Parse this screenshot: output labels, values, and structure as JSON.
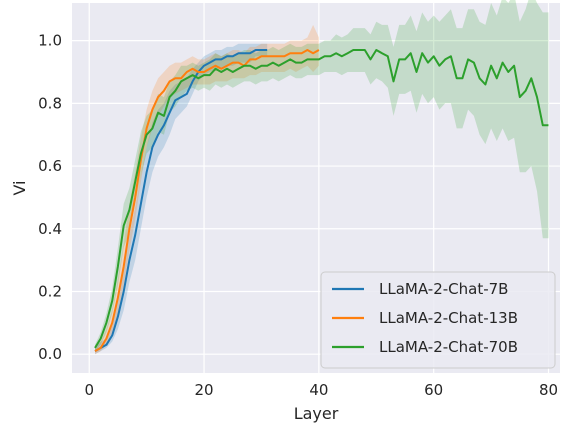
{
  "chart_data": {
    "type": "line",
    "xlabel": "Layer",
    "ylabel": "Vi",
    "xlim": [
      -3,
      82
    ],
    "ylim": [
      -0.06,
      1.12
    ],
    "xticks": [
      0,
      20,
      40,
      60,
      80
    ],
    "yticks": [
      0.0,
      0.2,
      0.4,
      0.6,
      0.8,
      1.0
    ],
    "xtick_labels": [
      "0",
      "20",
      "40",
      "60",
      "80"
    ],
    "ytick_labels": [
      "0.0",
      "0.2",
      "0.4",
      "0.6",
      "0.8",
      "1.0"
    ],
    "grid": true,
    "background": "#eaeaf2",
    "legend_position": "lower-right",
    "series": [
      {
        "name": "LLaMA-2-Chat-7B",
        "color": "#1f77b4",
        "x": [
          1,
          2,
          3,
          4,
          5,
          6,
          7,
          8,
          9,
          10,
          11,
          12,
          13,
          14,
          15,
          16,
          17,
          18,
          19,
          20,
          21,
          22,
          23,
          24,
          25,
          26,
          27,
          28,
          29,
          30,
          31
        ],
        "y": [
          0.01,
          0.02,
          0.03,
          0.06,
          0.12,
          0.2,
          0.3,
          0.38,
          0.48,
          0.58,
          0.66,
          0.7,
          0.73,
          0.77,
          0.81,
          0.82,
          0.83,
          0.87,
          0.9,
          0.92,
          0.93,
          0.94,
          0.94,
          0.95,
          0.95,
          0.96,
          0.96,
          0.96,
          0.97,
          0.97,
          0.97
        ],
        "lower": [
          0.0,
          0.01,
          0.02,
          0.04,
          0.08,
          0.14,
          0.23,
          0.3,
          0.4,
          0.5,
          0.58,
          0.63,
          0.66,
          0.7,
          0.75,
          0.77,
          0.79,
          0.83,
          0.87,
          0.89,
          0.9,
          0.91,
          0.91,
          0.92,
          0.92,
          0.93,
          0.93,
          0.93,
          0.95,
          0.95,
          0.95
        ],
        "upper": [
          0.02,
          0.04,
          0.05,
          0.09,
          0.17,
          0.27,
          0.38,
          0.47,
          0.57,
          0.66,
          0.74,
          0.78,
          0.8,
          0.84,
          0.86,
          0.87,
          0.88,
          0.91,
          0.93,
          0.95,
          0.96,
          0.97,
          0.97,
          0.98,
          0.98,
          0.99,
          0.99,
          0.99,
          0.99,
          0.99,
          0.99
        ]
      },
      {
        "name": "LLaMA-2-Chat-13B",
        "color": "#ff7f0e",
        "x": [
          1,
          2,
          3,
          4,
          5,
          6,
          7,
          8,
          9,
          10,
          11,
          12,
          13,
          14,
          15,
          16,
          17,
          18,
          19,
          20,
          21,
          22,
          23,
          24,
          25,
          26,
          27,
          28,
          29,
          30,
          31,
          32,
          33,
          34,
          35,
          36,
          37,
          38,
          39,
          40
        ],
        "y": [
          0.01,
          0.02,
          0.05,
          0.1,
          0.18,
          0.28,
          0.4,
          0.5,
          0.62,
          0.72,
          0.78,
          0.82,
          0.84,
          0.87,
          0.88,
          0.88,
          0.9,
          0.91,
          0.9,
          0.9,
          0.91,
          0.92,
          0.91,
          0.92,
          0.93,
          0.93,
          0.92,
          0.94,
          0.94,
          0.95,
          0.95,
          0.95,
          0.95,
          0.95,
          0.96,
          0.96,
          0.96,
          0.97,
          0.96,
          0.97
        ],
        "lower": [
          0.0,
          0.01,
          0.03,
          0.07,
          0.13,
          0.22,
          0.33,
          0.43,
          0.55,
          0.66,
          0.72,
          0.76,
          0.79,
          0.82,
          0.83,
          0.84,
          0.85,
          0.86,
          0.86,
          0.86,
          0.86,
          0.87,
          0.87,
          0.87,
          0.88,
          0.88,
          0.88,
          0.89,
          0.89,
          0.9,
          0.9,
          0.9,
          0.9,
          0.9,
          0.91,
          0.9,
          0.91,
          0.92,
          0.9,
          0.92
        ],
        "upper": [
          0.02,
          0.04,
          0.08,
          0.14,
          0.24,
          0.35,
          0.48,
          0.58,
          0.69,
          0.78,
          0.84,
          0.88,
          0.9,
          0.92,
          0.93,
          0.93,
          0.94,
          0.95,
          0.94,
          0.94,
          0.95,
          0.96,
          0.95,
          0.96,
          0.97,
          0.97,
          0.96,
          0.98,
          0.98,
          0.99,
          0.99,
          0.99,
          0.99,
          0.99,
          1.0,
          1.0,
          1.0,
          1.01,
          1.05,
          1.01
        ]
      },
      {
        "name": "LLaMA-2-Chat-70B",
        "color": "#2ca02c",
        "x": [
          1,
          2,
          3,
          4,
          5,
          6,
          7,
          8,
          9,
          10,
          11,
          12,
          13,
          14,
          15,
          16,
          17,
          18,
          19,
          20,
          21,
          22,
          23,
          24,
          25,
          26,
          27,
          28,
          29,
          30,
          31,
          32,
          33,
          34,
          35,
          36,
          37,
          38,
          39,
          40,
          41,
          42,
          43,
          44,
          45,
          46,
          47,
          48,
          49,
          50,
          51,
          52,
          53,
          54,
          55,
          56,
          57,
          58,
          59,
          60,
          61,
          62,
          63,
          64,
          65,
          66,
          67,
          68,
          69,
          70,
          71,
          72,
          73,
          74,
          75,
          76,
          77,
          78,
          79,
          80
        ],
        "y": [
          0.02,
          0.05,
          0.1,
          0.17,
          0.28,
          0.41,
          0.46,
          0.55,
          0.64,
          0.7,
          0.72,
          0.77,
          0.76,
          0.82,
          0.84,
          0.87,
          0.88,
          0.89,
          0.88,
          0.89,
          0.89,
          0.91,
          0.9,
          0.91,
          0.9,
          0.91,
          0.92,
          0.92,
          0.91,
          0.92,
          0.92,
          0.93,
          0.92,
          0.93,
          0.94,
          0.93,
          0.93,
          0.94,
          0.94,
          0.94,
          0.95,
          0.95,
          0.96,
          0.95,
          0.96,
          0.97,
          0.97,
          0.97,
          0.94,
          0.97,
          0.96,
          0.95,
          0.87,
          0.94,
          0.94,
          0.96,
          0.9,
          0.96,
          0.93,
          0.95,
          0.92,
          0.94,
          0.95,
          0.88,
          0.88,
          0.94,
          0.93,
          0.88,
          0.86,
          0.92,
          0.88,
          0.93,
          0.9,
          0.92,
          0.82,
          0.84,
          0.88,
          0.82,
          0.73,
          0.73
        ],
        "lower": [
          0.01,
          0.03,
          0.07,
          0.13,
          0.22,
          0.34,
          0.39,
          0.48,
          0.57,
          0.64,
          0.66,
          0.71,
          0.7,
          0.77,
          0.79,
          0.82,
          0.84,
          0.85,
          0.84,
          0.85,
          0.84,
          0.86,
          0.85,
          0.86,
          0.85,
          0.86,
          0.87,
          0.87,
          0.86,
          0.87,
          0.87,
          0.88,
          0.87,
          0.88,
          0.89,
          0.88,
          0.88,
          0.89,
          0.89,
          0.89,
          0.9,
          0.9,
          0.9,
          0.89,
          0.9,
          0.9,
          0.9,
          0.9,
          0.86,
          0.88,
          0.87,
          0.85,
          0.76,
          0.83,
          0.83,
          0.84,
          0.77,
          0.83,
          0.8,
          0.82,
          0.78,
          0.8,
          0.8,
          0.72,
          0.72,
          0.78,
          0.76,
          0.7,
          0.67,
          0.72,
          0.68,
          0.72,
          0.68,
          0.69,
          0.58,
          0.58,
          0.6,
          0.52,
          0.37,
          0.37
        ],
        "upper": [
          0.03,
          0.07,
          0.13,
          0.21,
          0.34,
          0.48,
          0.53,
          0.62,
          0.71,
          0.76,
          0.78,
          0.83,
          0.82,
          0.87,
          0.89,
          0.92,
          0.92,
          0.93,
          0.92,
          0.93,
          0.94,
          0.96,
          0.95,
          0.96,
          0.95,
          0.96,
          0.97,
          0.97,
          0.96,
          0.97,
          0.97,
          0.98,
          0.97,
          0.98,
          0.99,
          0.98,
          0.98,
          0.99,
          0.99,
          0.99,
          1.0,
          1.0,
          1.02,
          1.01,
          1.02,
          1.04,
          1.04,
          1.04,
          1.02,
          1.06,
          1.05,
          1.05,
          0.98,
          1.05,
          1.05,
          1.08,
          1.03,
          1.09,
          1.06,
          1.08,
          1.06,
          1.08,
          1.1,
          1.04,
          1.04,
          1.1,
          1.1,
          1.06,
          1.05,
          1.12,
          1.08,
          1.14,
          1.12,
          1.15,
          1.06,
          1.1,
          1.16,
          1.12,
          1.09,
          1.09
        ]
      }
    ]
  }
}
